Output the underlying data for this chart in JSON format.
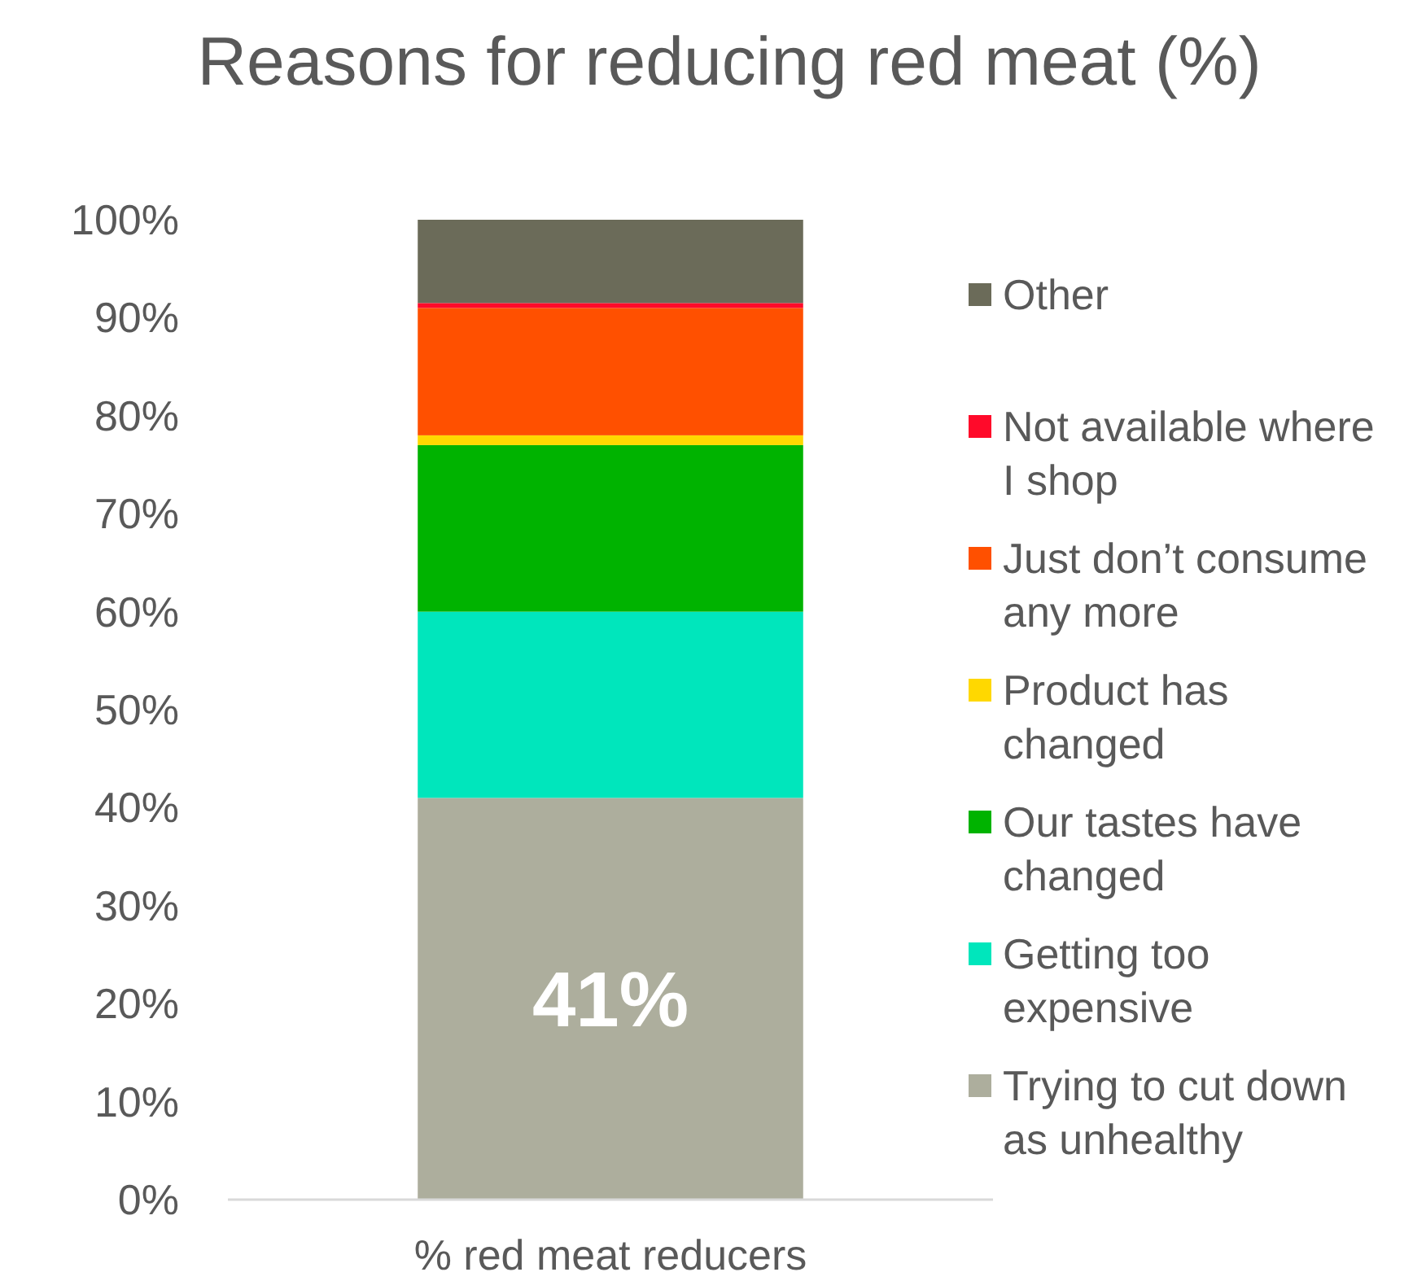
{
  "chart_data": {
    "type": "bar",
    "stacked": true,
    "title": "Reasons for reducing red meat (%)",
    "categories": [
      "% red meat reducers"
    ],
    "series": [
      {
        "name": "Trying to cut down as unhealthy",
        "color": "#adae9d",
        "values": [
          41
        ],
        "value_labels": [
          "41%"
        ]
      },
      {
        "name": "Getting too expensive",
        "color": "#00e6bc",
        "values": [
          19
        ]
      },
      {
        "name": "Our tastes have changed",
        "color": "#00b300",
        "values": [
          17
        ]
      },
      {
        "name": "Product has changed",
        "color": "#ffd800",
        "values": [
          1
        ]
      },
      {
        "name": "Just don’t consume any more",
        "color": "#ff5000",
        "values": [
          13
        ]
      },
      {
        "name": "Not available where I shop",
        "color": "#ff0a2a",
        "values": [
          0.5
        ]
      },
      {
        "name": "Other",
        "color": "#6b6b59",
        "values": [
          8.5
        ]
      }
    ],
    "ylim": [
      0,
      100
    ],
    "yticks": [
      {
        "value": 0,
        "label": "0%"
      },
      {
        "value": 10,
        "label": "10%"
      },
      {
        "value": 20,
        "label": "20%"
      },
      {
        "value": 30,
        "label": "30%"
      },
      {
        "value": 40,
        "label": "40%"
      },
      {
        "value": 50,
        "label": "50%"
      },
      {
        "value": 60,
        "label": "60%"
      },
      {
        "value": 70,
        "label": "70%"
      },
      {
        "value": 80,
        "label": "80%"
      },
      {
        "value": 90,
        "label": "90%"
      },
      {
        "value": 100,
        "label": "100%"
      }
    ],
    "grid": false,
    "legend": "right"
  }
}
